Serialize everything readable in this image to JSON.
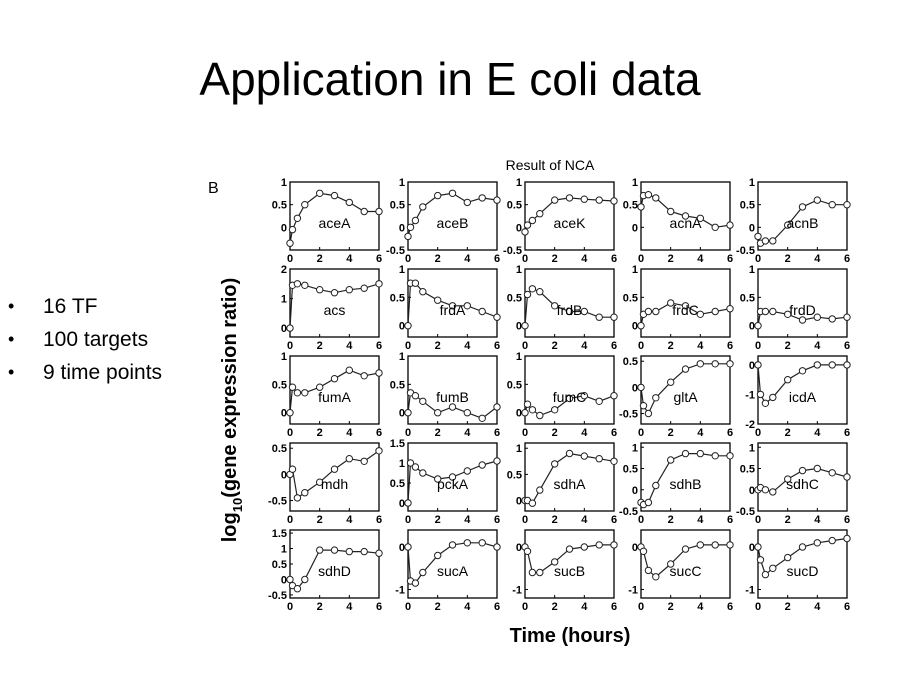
{
  "slide": {
    "title": "Application in E coli data",
    "bullets": [
      "16 TF",
      "100 targets",
      "9 time points"
    ]
  },
  "figure": {
    "heading": "Result of NCA",
    "panel_letter": "B"
  },
  "chart_data": {
    "type": "line",
    "layout": "small-multiples 5x5",
    "xlabel": "Time (hours)",
    "ylabel_base": "log",
    "ylabel_sub": "10",
    "ylabel_rest": "(gene expression ratio)",
    "x_ticks": [
      0,
      2,
      4,
      6
    ],
    "xlim": [
      0,
      6
    ],
    "x": [
      0,
      0.17,
      0.5,
      1,
      2,
      3,
      4,
      5,
      6
    ],
    "panels": [
      {
        "gene": "aceA",
        "ylim": [
          -0.5,
          1
        ],
        "yticks": [
          {
            "v": 1,
            "t": "1"
          },
          {
            "v": 0.5,
            "t": "0.5"
          },
          {
            "v": 0,
            "t": "0"
          }
        ],
        "y": [
          -0.35,
          -0.05,
          0.2,
          0.5,
          0.75,
          0.7,
          0.55,
          0.35,
          0.35
        ]
      },
      {
        "gene": "aceB",
        "ylim": [
          -0.5,
          1
        ],
        "yticks": [
          {
            "v": 1,
            "t": "1"
          },
          {
            "v": 0.5,
            "t": "0.5"
          },
          {
            "v": 0,
            "t": "0"
          },
          {
            "v": -0.5,
            "t": "-0.5"
          }
        ],
        "y": [
          -0.2,
          0.0,
          0.15,
          0.45,
          0.7,
          0.75,
          0.55,
          0.65,
          0.6
        ]
      },
      {
        "gene": "aceK",
        "ylim": [
          -0.5,
          1
        ],
        "yticks": [
          {
            "v": 1,
            "t": "1"
          },
          {
            "v": 0.5,
            "t": "0.5"
          },
          {
            "v": 0,
            "t": "0"
          },
          {
            "v": -0.5,
            "t": "-0.5"
          }
        ],
        "y": [
          -0.1,
          0.05,
          0.15,
          0.3,
          0.6,
          0.65,
          0.62,
          0.6,
          0.58
        ]
      },
      {
        "gene": "acnA",
        "ylim": [
          -0.5,
          1
        ],
        "yticks": [
          {
            "v": 1,
            "t": "1"
          },
          {
            "v": 0.5,
            "t": "0.5"
          },
          {
            "v": 0,
            "t": "0"
          }
        ],
        "y": [
          0.45,
          0.7,
          0.72,
          0.65,
          0.35,
          0.25,
          0.2,
          0.0,
          0.05
        ]
      },
      {
        "gene": "acnB",
        "ylim": [
          -0.5,
          1
        ],
        "yticks": [
          {
            "v": 1,
            "t": "1"
          },
          {
            "v": 0.5,
            "t": "0.5"
          },
          {
            "v": 0,
            "t": "0"
          },
          {
            "v": -0.5,
            "t": "-0.5"
          }
        ],
        "y": [
          -0.2,
          -0.35,
          -0.3,
          -0.3,
          0.05,
          0.45,
          0.6,
          0.5,
          0.5
        ]
      },
      {
        "gene": "acs",
        "ylim": [
          -0.3,
          2
        ],
        "yticks": [
          {
            "v": 2,
            "t": "2"
          },
          {
            "v": 1,
            "t": "1"
          },
          {
            "v": 0,
            "t": "0"
          }
        ],
        "y": [
          0.0,
          1.45,
          1.5,
          1.45,
          1.3,
          1.2,
          1.3,
          1.35,
          1.5
        ]
      },
      {
        "gene": "frdA",
        "ylim": [
          -0.2,
          1
        ],
        "yticks": [
          {
            "v": 1,
            "t": "1"
          },
          {
            "v": 0.5,
            "t": "0.5"
          },
          {
            "v": 0,
            "t": "0"
          }
        ],
        "y": [
          0.0,
          0.75,
          0.75,
          0.6,
          0.45,
          0.35,
          0.35,
          0.25,
          0.15
        ]
      },
      {
        "gene": "frdB",
        "ylim": [
          -0.2,
          1
        ],
        "yticks": [
          {
            "v": 1,
            "t": "1"
          },
          {
            "v": 0.5,
            "t": "0.5"
          },
          {
            "v": 0,
            "t": "0"
          }
        ],
        "y": [
          0.0,
          0.55,
          0.65,
          0.6,
          0.35,
          0.25,
          0.25,
          0.15,
          0.15
        ]
      },
      {
        "gene": "frdC",
        "ylim": [
          -0.2,
          1
        ],
        "yticks": [
          {
            "v": 1,
            "t": "1"
          },
          {
            "v": 0.5,
            "t": "0.5"
          },
          {
            "v": 0,
            "t": "0"
          }
        ],
        "y": [
          0.0,
          0.2,
          0.25,
          0.25,
          0.4,
          0.35,
          0.2,
          0.25,
          0.3
        ]
      },
      {
        "gene": "frdD",
        "ylim": [
          -0.2,
          1
        ],
        "yticks": [
          {
            "v": 1,
            "t": "1"
          },
          {
            "v": 0.5,
            "t": "0.5"
          },
          {
            "v": 0,
            "t": "0"
          }
        ],
        "y": [
          0.0,
          0.25,
          0.25,
          0.25,
          0.2,
          0.1,
          0.15,
          0.12,
          0.15
        ]
      },
      {
        "gene": "fumA",
        "ylim": [
          -0.2,
          1
        ],
        "yticks": [
          {
            "v": 1,
            "t": "1"
          },
          {
            "v": 0.5,
            "t": "0.5"
          },
          {
            "v": 0,
            "t": "0"
          }
        ],
        "y": [
          0.0,
          0.45,
          0.35,
          0.35,
          0.45,
          0.6,
          0.75,
          0.65,
          0.7
        ]
      },
      {
        "gene": "fumB",
        "ylim": [
          -0.2,
          1
        ],
        "yticks": [
          {
            "v": 1,
            "t": "1"
          },
          {
            "v": 0.5,
            "t": "0.5"
          },
          {
            "v": 0,
            "t": "0"
          }
        ],
        "y": [
          0.0,
          0.35,
          0.3,
          0.2,
          0.0,
          0.1,
          0.0,
          -0.1,
          0.1
        ]
      },
      {
        "gene": "fumC",
        "ylim": [
          -0.2,
          1
        ],
        "yticks": [
          {
            "v": 1,
            "t": "1"
          },
          {
            "v": 0.5,
            "t": "0.5"
          },
          {
            "v": 0,
            "t": "0"
          }
        ],
        "y": [
          0.0,
          0.15,
          0.05,
          -0.05,
          0.05,
          0.25,
          0.3,
          0.2,
          0.3
        ]
      },
      {
        "gene": "gltA",
        "ylim": [
          -0.7,
          0.6
        ],
        "yticks": [
          {
            "v": 0.5,
            "t": "0.5"
          },
          {
            "v": 0,
            "t": "0"
          },
          {
            "v": -0.5,
            "t": "-0.5"
          }
        ],
        "y": [
          0.0,
          -0.35,
          -0.5,
          -0.2,
          0.1,
          0.35,
          0.45,
          0.45,
          0.45
        ]
      },
      {
        "gene": "icdA",
        "ylim": [
          -2,
          0.3
        ],
        "yticks": [
          {
            "v": 0,
            "t": "0"
          },
          {
            "v": -1,
            "t": "-1"
          },
          {
            "v": -2,
            "t": "-2"
          }
        ],
        "y": [
          0.0,
          -1.0,
          -1.3,
          -1.1,
          -0.5,
          -0.2,
          0.0,
          0.0,
          0.0
        ]
      },
      {
        "gene": "mdh",
        "ylim": [
          -0.7,
          0.6
        ],
        "yticks": [
          {
            "v": 0.5,
            "t": "0.5"
          },
          {
            "v": 0,
            "t": "0"
          },
          {
            "v": -0.5,
            "t": "-0.5"
          }
        ],
        "y": [
          0.0,
          0.1,
          -0.45,
          -0.35,
          -0.15,
          0.1,
          0.3,
          0.25,
          0.45
        ]
      },
      {
        "gene": "pckA",
        "ylim": [
          -0.2,
          1.5
        ],
        "yticks": [
          {
            "v": 1.5,
            "t": "1.5"
          },
          {
            "v": 1,
            "t": "1"
          },
          {
            "v": 0.5,
            "t": "0.5"
          },
          {
            "v": 0,
            "t": "0"
          }
        ],
        "y": [
          0.0,
          1.0,
          0.9,
          0.75,
          0.6,
          0.65,
          0.8,
          0.95,
          1.05
        ]
      },
      {
        "gene": "sdhA",
        "ylim": [
          -0.2,
          1.1
        ],
        "yticks": [
          {
            "v": 1,
            "t": "1"
          },
          {
            "v": 0.5,
            "t": "0.5"
          },
          {
            "v": 0,
            "t": "0"
          }
        ],
        "y": [
          0.0,
          0.0,
          -0.05,
          0.2,
          0.7,
          0.9,
          0.85,
          0.8,
          0.75
        ]
      },
      {
        "gene": "sdhB",
        "ylim": [
          -0.5,
          1.1
        ],
        "yticks": [
          {
            "v": 1,
            "t": "1"
          },
          {
            "v": 0.5,
            "t": "0.5"
          },
          {
            "v": 0,
            "t": "0"
          },
          {
            "v": -0.5,
            "t": "-0.5"
          }
        ],
        "y": [
          -0.3,
          -0.35,
          -0.3,
          0.1,
          0.7,
          0.85,
          0.85,
          0.8,
          0.8
        ]
      },
      {
        "gene": "sdhC",
        "ylim": [
          -0.5,
          1.1
        ],
        "yticks": [
          {
            "v": 1,
            "t": "1"
          },
          {
            "v": 0.5,
            "t": "0.5"
          },
          {
            "v": 0,
            "t": "0"
          },
          {
            "v": -0.5,
            "t": "-0.5"
          }
        ],
        "y": [
          0.0,
          0.05,
          0.0,
          -0.05,
          0.25,
          0.45,
          0.5,
          0.4,
          0.3
        ]
      },
      {
        "gene": "sdhD",
        "ylim": [
          -0.6,
          1.6
        ],
        "yticks": [
          {
            "v": 1.5,
            "t": "1.5"
          },
          {
            "v": 1,
            "t": "1"
          },
          {
            "v": 0.5,
            "t": "0.5"
          },
          {
            "v": 0,
            "t": "0"
          },
          {
            "v": -0.5,
            "t": "-0.5"
          }
        ],
        "y": [
          0.0,
          -0.2,
          -0.3,
          0.0,
          0.95,
          0.95,
          0.9,
          0.9,
          0.85
        ]
      },
      {
        "gene": "sucA",
        "ylim": [
          -1.2,
          0.4
        ],
        "yticks": [
          {
            "v": 0,
            "t": "0"
          },
          {
            "v": -1,
            "t": "-1"
          }
        ],
        "y": [
          0.0,
          -0.8,
          -0.85,
          -0.6,
          -0.2,
          0.05,
          0.1,
          0.1,
          0.0
        ]
      },
      {
        "gene": "sucB",
        "ylim": [
          -1.2,
          0.4
        ],
        "yticks": [
          {
            "v": 0,
            "t": "0"
          },
          {
            "v": -1,
            "t": "-1"
          }
        ],
        "y": [
          0.0,
          -0.1,
          -0.6,
          -0.6,
          -0.35,
          -0.05,
          0.0,
          0.05,
          0.05
        ]
      },
      {
        "gene": "sucC",
        "ylim": [
          -1.2,
          0.4
        ],
        "yticks": [
          {
            "v": 0,
            "t": "0"
          },
          {
            "v": -1,
            "t": "-1"
          }
        ],
        "y": [
          0.0,
          -0.1,
          -0.55,
          -0.7,
          -0.4,
          -0.05,
          0.05,
          0.05,
          0.05
        ]
      },
      {
        "gene": "sucD",
        "ylim": [
          -1.2,
          0.4
        ],
        "yticks": [
          {
            "v": 0,
            "t": "0"
          },
          {
            "v": -1,
            "t": "-1"
          }
        ],
        "y": [
          0.0,
          -0.3,
          -0.65,
          -0.5,
          -0.25,
          0.0,
          0.1,
          0.15,
          0.2
        ]
      }
    ]
  }
}
